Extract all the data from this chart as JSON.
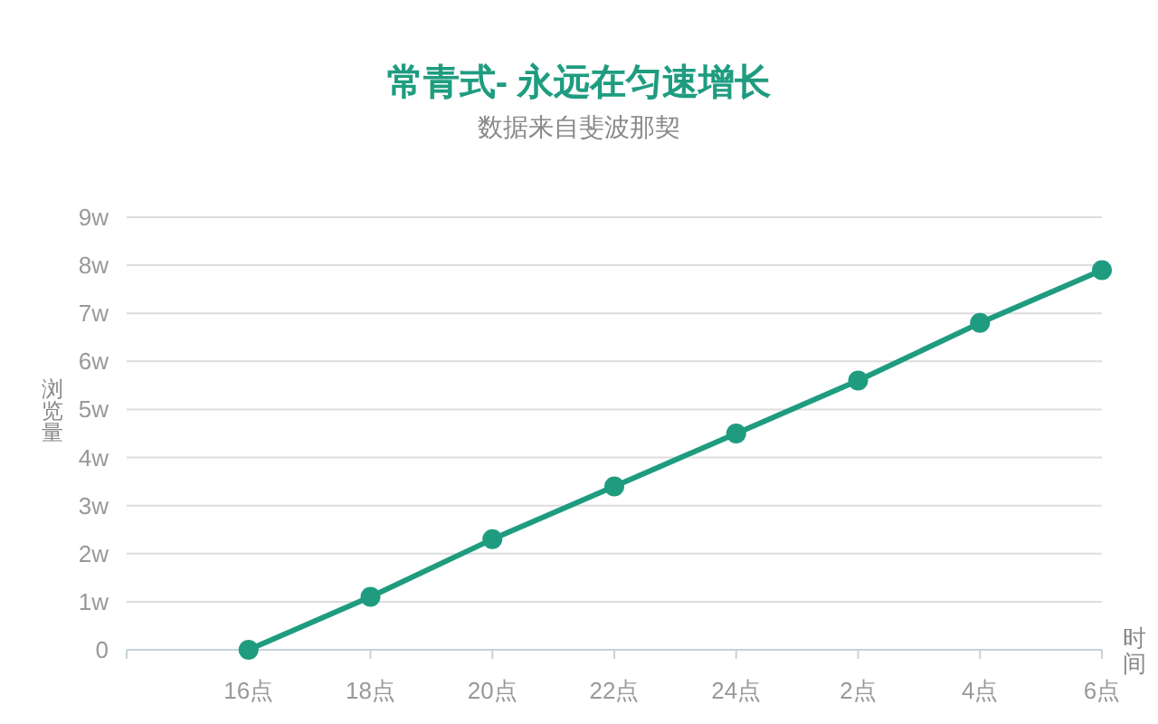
{
  "chart_data": {
    "type": "line",
    "title": "常青式- 永远在匀速增长",
    "subtitle": "数据来自斐波那契",
    "xlabel": "时间",
    "ylabel": "浏览量",
    "categories": [
      null,
      "16点",
      "18点",
      "20点",
      "22点",
      "24点",
      "2点",
      "4点",
      "6点"
    ],
    "values": [
      null,
      0,
      1.1,
      2.3,
      3.4,
      4.5,
      5.6,
      6.8,
      7.9
    ],
    "color": "#1f9c80",
    "ylim": [
      0,
      9
    ],
    "yticks": [
      0,
      {
        "value": 1,
        "label": "1w"
      },
      {
        "value": 2,
        "label": "2w"
      },
      {
        "value": 3,
        "label": "3w"
      },
      {
        "value": 4,
        "label": "4w"
      },
      {
        "value": 5,
        "label": "5w"
      },
      {
        "value": 6,
        "label": "6w"
      },
      {
        "value": 7,
        "label": "7w"
      },
      {
        "value": 8,
        "label": "8w"
      },
      {
        "value": 9,
        "label": "9w"
      }
    ],
    "grid": "y",
    "marker": "circle",
    "line_style": "solid"
  }
}
